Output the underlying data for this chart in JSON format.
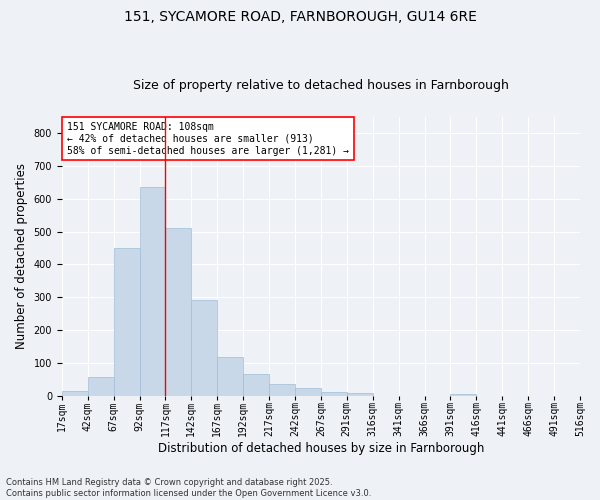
{
  "title_line1": "151, SYCAMORE ROAD, FARNBOROUGH, GU14 6RE",
  "title_line2": "Size of property relative to detached houses in Farnborough",
  "xlabel": "Distribution of detached houses by size in Farnborough",
  "ylabel": "Number of detached properties",
  "bar_values": [
    13,
    58,
    450,
    635,
    510,
    293,
    118,
    65,
    37,
    22,
    11,
    7,
    0,
    0,
    0,
    4,
    0,
    0,
    0,
    0
  ],
  "bar_labels": [
    "17sqm",
    "42sqm",
    "67sqm",
    "92sqm",
    "117sqm",
    "142sqm",
    "167sqm",
    "192sqm",
    "217sqm",
    "242sqm",
    "267sqm",
    "291sqm",
    "316sqm",
    "341sqm",
    "366sqm",
    "391sqm",
    "416sqm",
    "441sqm",
    "466sqm",
    "491sqm",
    "516sqm"
  ],
  "bar_color": "#c8d8e8",
  "bar_edge_color": "#a0bed8",
  "vline_x": 4,
  "vline_color": "red",
  "annotation_text": "151 SYCAMORE ROAD: 108sqm\n← 42% of detached houses are smaller (913)\n58% of semi-detached houses are larger (1,281) →",
  "annotation_box_color": "white",
  "annotation_box_edge": "red",
  "ylim": [
    0,
    850
  ],
  "yticks": [
    0,
    100,
    200,
    300,
    400,
    500,
    600,
    700,
    800
  ],
  "background_color": "#eef2f7",
  "grid_color": "white",
  "footer_text": "Contains HM Land Registry data © Crown copyright and database right 2025.\nContains public sector information licensed under the Open Government Licence v3.0.",
  "title_fontsize": 10,
  "subtitle_fontsize": 9,
  "tick_fontsize": 7,
  "label_fontsize": 8.5,
  "footer_fontsize": 6
}
